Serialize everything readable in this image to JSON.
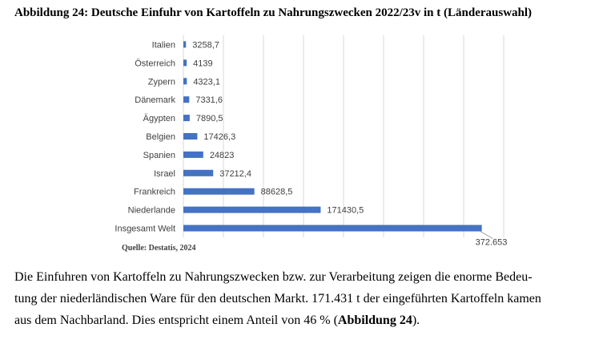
{
  "figure_title": "Abbildung 24: Deutsche Einfuhr von Kartoffeln zu Nahrungszwecken 2022/23v in t (Länderauswahl)",
  "source": "Quelle: Destatis, 2024",
  "paragraph": {
    "line1": "Die Einfuhren von Kartoffeln zu Nahrungszwecken bzw. zur Verarbeitung zeigen die enorme Bedeu-",
    "line2": "tung der niederländischen Ware für den deutschen Markt. 171.431 t der eingeführten Kartoffeln kamen",
    "line3_pre": "aus dem Nachbarland. Dies entspricht einem Anteil von 46 % (",
    "line3_bold": "Abbildung 24",
    "line3_post": ")."
  },
  "chart_data": {
    "type": "bar",
    "orientation": "horizontal",
    "categories": [
      "Italien",
      "Österreich",
      "Zypern",
      "Dänemark",
      "Ägypten",
      "Belgien",
      "Spanien",
      "Israel",
      "Frankreich",
      "Niederlande",
      "Insgesamt Welt"
    ],
    "values": [
      3258.7,
      4139,
      4323.1,
      7331.6,
      7890.5,
      17426.3,
      24823,
      37212.4,
      88628.5,
      171430.5,
      372653
    ],
    "value_labels": [
      "3258,7",
      "4139",
      "4323,1",
      "7331,6",
      "7890,5",
      "17426,3",
      "24823",
      "37212,4",
      "88628,5",
      "171430,5",
      "372.653"
    ],
    "xlim": [
      0,
      400000
    ],
    "grid": true,
    "bar_color": "#4472c4"
  }
}
